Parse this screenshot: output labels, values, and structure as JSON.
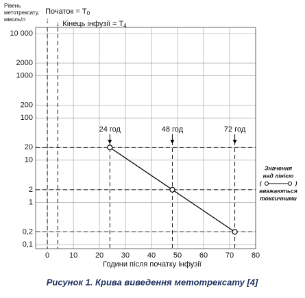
{
  "chart_data": {
    "type": "line",
    "y_label": [
      "Рівень",
      "метотрексату,",
      "ммоль/л"
    ],
    "x_label": "Години після початку інфузії",
    "caption": "Рисунок 1. Крива виведення метотрексату [4]",
    "reference_lines": [
      {
        "x": 0,
        "label": "Початок = T",
        "sub": "0"
      },
      {
        "x": 4,
        "label": "Кінець інфузії = T",
        "sub": "4"
      }
    ],
    "x": [
      24,
      48,
      72
    ],
    "values": [
      20,
      2,
      0.2
    ],
    "point_labels": [
      "24 год",
      "48 год",
      "72 год"
    ],
    "color": "#000000",
    "note": [
      "Значення",
      "над лінією",
      "(",
      ")",
      "вважаються",
      "токсичними"
    ],
    "xlim": [
      -4.5,
      80
    ],
    "xticks": [
      0,
      10,
      20,
      30,
      40,
      50,
      60,
      70,
      80
    ],
    "ylim": [
      0.08,
      14000
    ],
    "log_y": true,
    "yticks": [
      {
        "value": 10000,
        "label": "10 000"
      },
      2000,
      1000,
      200,
      100,
      20,
      10,
      2,
      1,
      {
        "value": 0.2,
        "label": "0,2"
      },
      {
        "value": 0.1,
        "label": "0,1"
      }
    ],
    "grid": true
  }
}
